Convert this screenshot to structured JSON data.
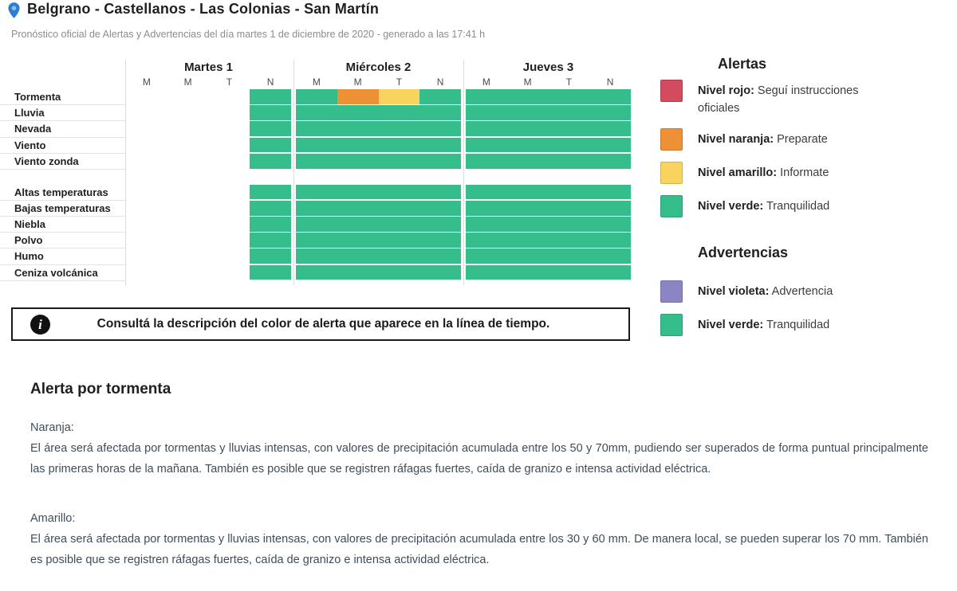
{
  "header": {
    "title": "Belgrano - Castellanos - Las Colonias - San Martín",
    "subtitle": "Pronóstico oficial de Alertas y Advertencias del día martes 1 de diciembre de 2020 - generado a las 17:41 h"
  },
  "colors": {
    "green": "#35be8c",
    "orange": "#ee9036",
    "yellow": "#f8d35e",
    "red": "#d24b5e",
    "violet": "#8b85c6",
    "pin_blue": "#2c7ed2"
  },
  "timeline": {
    "days": [
      {
        "label": "Martes 1",
        "subcols": [
          "M",
          "M",
          "T",
          "N"
        ]
      },
      {
        "label": "Miércoles 2",
        "subcols": [
          "M",
          "M",
          "T",
          "N"
        ]
      },
      {
        "label": "Jueves 3",
        "subcols": [
          "M",
          "M",
          "T",
          "N"
        ]
      }
    ],
    "groups": [
      {
        "rows": [
          {
            "label": "Tormenta",
            "cells": [
              [
                "",
                "",
                "",
                "green"
              ],
              [
                "green",
                "orange",
                "yellow",
                "green"
              ],
              [
                "green",
                "green",
                "green",
                "green"
              ]
            ]
          },
          {
            "label": "Lluvia",
            "cells": [
              [
                "",
                "",
                "",
                "green"
              ],
              [
                "green",
                "green",
                "green",
                "green"
              ],
              [
                "green",
                "green",
                "green",
                "green"
              ]
            ]
          },
          {
            "label": "Nevada",
            "cells": [
              [
                "",
                "",
                "",
                "green"
              ],
              [
                "green",
                "green",
                "green",
                "green"
              ],
              [
                "green",
                "green",
                "green",
                "green"
              ]
            ]
          },
          {
            "label": "Viento",
            "cells": [
              [
                "",
                "",
                "",
                "green"
              ],
              [
                "green",
                "green",
                "green",
                "green"
              ],
              [
                "green",
                "green",
                "green",
                "green"
              ]
            ]
          },
          {
            "label": "Viento zonda",
            "cells": [
              [
                "",
                "",
                "",
                "green"
              ],
              [
                "green",
                "green",
                "green",
                "green"
              ],
              [
                "green",
                "green",
                "green",
                "green"
              ]
            ]
          }
        ]
      },
      {
        "rows": [
          {
            "label": "Altas temperaturas",
            "cells": [
              [
                "",
                "",
                "",
                "green"
              ],
              [
                "green",
                "green",
                "green",
                "green"
              ],
              [
                "green",
                "green",
                "green",
                "green"
              ]
            ]
          },
          {
            "label": "Bajas temperaturas",
            "cells": [
              [
                "",
                "",
                "",
                "green"
              ],
              [
                "green",
                "green",
                "green",
                "green"
              ],
              [
                "green",
                "green",
                "green",
                "green"
              ]
            ]
          },
          {
            "label": "Niebla",
            "cells": [
              [
                "",
                "",
                "",
                "green"
              ],
              [
                "green",
                "green",
                "green",
                "green"
              ],
              [
                "green",
                "green",
                "green",
                "green"
              ]
            ]
          },
          {
            "label": "Polvo",
            "cells": [
              [
                "",
                "",
                "",
                "green"
              ],
              [
                "green",
                "green",
                "green",
                "green"
              ],
              [
                "green",
                "green",
                "green",
                "green"
              ]
            ]
          },
          {
            "label": "Humo",
            "cells": [
              [
                "",
                "",
                "",
                "green"
              ],
              [
                "green",
                "green",
                "green",
                "green"
              ],
              [
                "green",
                "green",
                "green",
                "green"
              ]
            ]
          },
          {
            "label": "Ceniza volcánica",
            "cells": [
              [
                "",
                "",
                "",
                "green"
              ],
              [
                "green",
                "green",
                "green",
                "green"
              ],
              [
                "green",
                "green",
                "green",
                "green"
              ]
            ]
          }
        ]
      }
    ]
  },
  "info": {
    "text": "Consultá la descripción del color de alerta que aparece en la línea de tiempo."
  },
  "legend": {
    "alerts": {
      "title": "Alertas",
      "items": [
        {
          "color": "red",
          "label": "Nivel rojo:",
          "desc": "Seguí instrucciones oficiales"
        },
        {
          "color": "orange",
          "label": "Nivel naranja:",
          "desc": "Preparate"
        },
        {
          "color": "yellow",
          "label": "Nivel amarillo:",
          "desc": "Informate"
        },
        {
          "color": "green",
          "label": "Nivel verde:",
          "desc": "Tranquilidad"
        }
      ]
    },
    "warnings": {
      "title": "Advertencias",
      "items": [
        {
          "color": "violet",
          "label": "Nivel violeta:",
          "desc": "Advertencia"
        },
        {
          "color": "green",
          "label": "Nivel verde:",
          "desc": "Tranquilidad"
        }
      ]
    }
  },
  "details": {
    "title": "Alerta por tormenta",
    "sections": [
      {
        "level": "Naranja:",
        "text": "El área será afectada por tormentas y lluvias intensas, con valores de precipitación acumulada entre los 50 y 70mm, pudiendo ser superados de forma puntual principalmente las primeras horas de la mañana. También es posible que se registren ráfagas fuertes, caída de granizo e intensa actividad eléctrica."
      },
      {
        "level": "Amarillo:",
        "text": "El área será afectada por tormentas y lluvias intensas, con valores de precipitación acumulada entre los 30 y 60 mm. De manera local, se pueden superar los 70 mm. También es posible que se registren ráfagas fuertes, caída de granizo e intensa actividad eléctrica."
      }
    ]
  }
}
